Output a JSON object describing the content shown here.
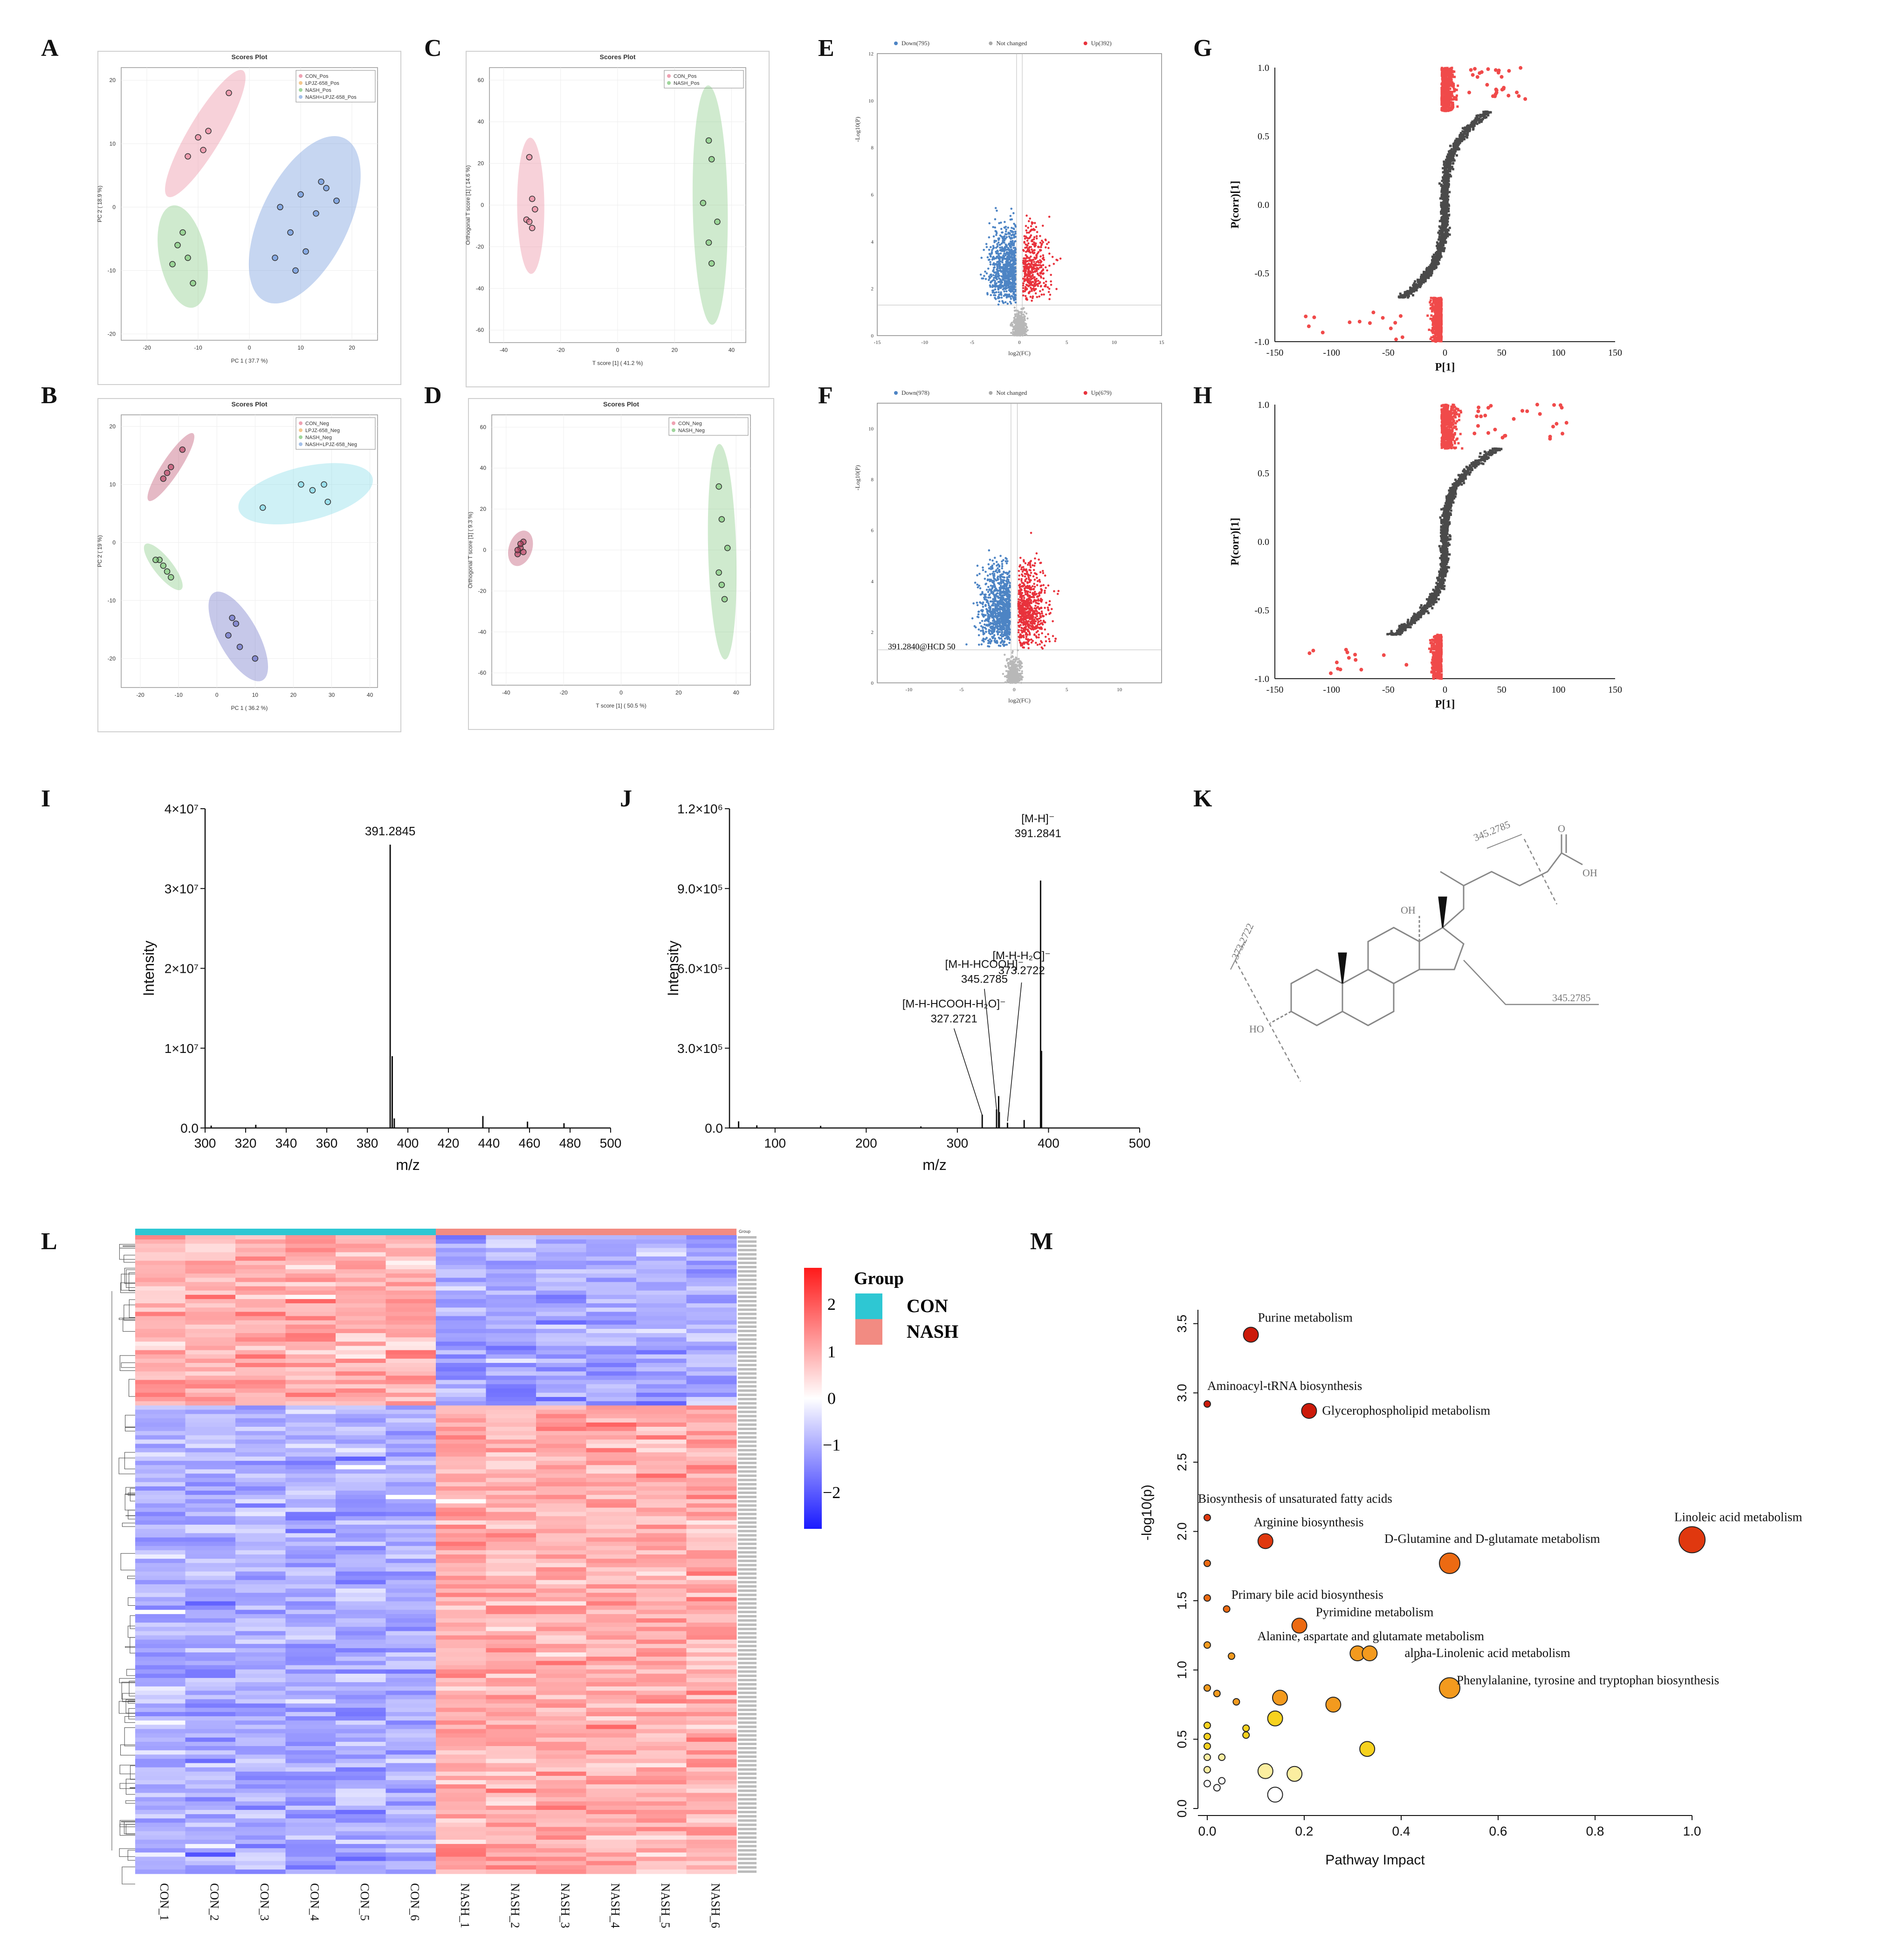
{
  "panels": {
    "A": {
      "letter": "A",
      "title": "Scores Plot",
      "xlabel": "PC 1 ( 37.7 %)",
      "ylabel": "PC 2 ( 18.9 %)",
      "xticks": [
        -20,
        -10,
        0,
        10,
        20
      ],
      "yticks": [
        20,
        10,
        0,
        -10,
        -20
      ],
      "legend": [
        "CON_Pos",
        "LPJZ-658_Pos",
        "NASH_Pos",
        "NASH+LPJZ-658_Pos"
      ],
      "colors": [
        "#e87a93",
        "#f0b060",
        "#76c472",
        "#7fa7e0"
      ],
      "groups": [
        {
          "color": "#e87a93",
          "points": [
            [
              -4,
              18
            ],
            [
              -8,
              12
            ],
            [
              -9,
              9
            ],
            [
              -12,
              8
            ],
            [
              -10,
              11
            ]
          ]
        },
        {
          "color": "#76c472",
          "points": [
            [
              -13,
              -4
            ],
            [
              -14,
              -6
            ],
            [
              -15,
              -9
            ],
            [
              -11,
              -12
            ],
            [
              -12,
              -8
            ]
          ]
        },
        {
          "color": "#5b8ad8",
          "points": [
            [
              6,
              0
            ],
            [
              8,
              -4
            ],
            [
              10,
              2
            ],
            [
              13,
              -1
            ],
            [
              15,
              3
            ],
            [
              17,
              1
            ],
            [
              5,
              -8
            ],
            [
              9,
              -10
            ],
            [
              11,
              -7
            ],
            [
              14,
              4
            ]
          ]
        }
      ]
    },
    "B": {
      "letter": "B",
      "title": "Scores Plot",
      "xlabel": "PC 1 ( 36.2 %)",
      "ylabel": "PC 2 ( 19 %)",
      "xticks": [
        -20,
        -10,
        0,
        10,
        20,
        30,
        40
      ],
      "yticks": [
        20,
        10,
        0,
        -10,
        -20
      ],
      "legend": [
        "CON_Neg",
        "LPJZ-658_Neg",
        "NASH_Neg",
        "NASH+LPJZ-658_Neg"
      ],
      "colors": [
        "#e87a93",
        "#f0b060",
        "#76c472",
        "#7fa7e0"
      ],
      "groups": [
        {
          "color": "#b5375a",
          "points": [
            [
              -9,
              16
            ],
            [
              -13,
              12
            ],
            [
              -14,
              11
            ],
            [
              -12,
              13
            ]
          ]
        },
        {
          "color": "#76c472",
          "points": [
            [
              -15,
              -3
            ],
            [
              -13,
              -5
            ],
            [
              -12,
              -6
            ],
            [
              -14,
              -4
            ],
            [
              -16,
              -3
            ]
          ]
        },
        {
          "color": "#76d6e6",
          "points": [
            [
              22,
              10
            ],
            [
              25,
              9
            ],
            [
              28,
              10
            ],
            [
              29,
              7
            ],
            [
              12,
              6
            ]
          ]
        },
        {
          "color": "#5b62c0",
          "points": [
            [
              3,
              -16
            ],
            [
              5,
              -14
            ],
            [
              6,
              -18
            ],
            [
              10,
              -20
            ],
            [
              4,
              -13
            ]
          ]
        }
      ]
    },
    "C": {
      "letter": "C",
      "title": "Scores Plot",
      "xlabel": "T score [1] ( 41.2 %)",
      "ylabel": "Orthogonal T score [1] ( 14.6 %)",
      "xticks": [
        -40,
        -20,
        0,
        20,
        40
      ],
      "yticks": [
        60,
        40,
        20,
        0,
        -20,
        -40,
        -60
      ],
      "legend": [
        "CON_Pos",
        "NASH_Pos"
      ],
      "colors": [
        "#e87a93",
        "#76c472"
      ],
      "groups": [
        {
          "color": "#e87a93",
          "points": [
            [
              -31,
              23
            ],
            [
              -30,
              3
            ],
            [
              -29,
              -2
            ],
            [
              -32,
              -7
            ],
            [
              -30,
              -11
            ],
            [
              -31,
              -8
            ]
          ]
        },
        {
          "color": "#76c472",
          "points": [
            [
              32,
              31
            ],
            [
              33,
              22
            ],
            [
              30,
              1
            ],
            [
              35,
              -8
            ],
            [
              32,
              -18
            ],
            [
              33,
              -28
            ]
          ]
        }
      ]
    },
    "D": {
      "letter": "D",
      "title": "Scores Plot",
      "xlabel": "T score [1] ( 50.5 %)",
      "ylabel": "Orthogonal T score [1] ( 9.3 %)",
      "xticks": [
        -40,
        -20,
        0,
        20,
        40
      ],
      "yticks": [
        60,
        40,
        20,
        0,
        -20,
        -40,
        -60
      ],
      "legend": [
        "CON_Neg",
        "NASH_Neg"
      ],
      "colors": [
        "#e87a93",
        "#76c472"
      ],
      "groups": [
        {
          "color": "#b5375a",
          "points": [
            [
              -34,
              4
            ],
            [
              -35,
              1
            ],
            [
              -36,
              -2
            ],
            [
              -34,
              -1
            ],
            [
              -35,
              3
            ],
            [
              -36,
              0
            ]
          ]
        },
        {
          "color": "#76c472",
          "points": [
            [
              34,
              31
            ],
            [
              35,
              15
            ],
            [
              37,
              1
            ],
            [
              34,
              -11
            ],
            [
              35,
              -17
            ],
            [
              36,
              -24
            ]
          ]
        }
      ]
    },
    "E": {
      "letter": "E",
      "legend": [
        "Down(795)",
        "Not changed",
        "Up(392)"
      ],
      "xlabel": "log2(FC)",
      "ylabel": "-Log10(P)",
      "xticks": [
        -15,
        -10,
        -5,
        0,
        5,
        10,
        15
      ],
      "yticks": [
        0,
        2,
        4,
        6,
        8,
        10,
        12
      ],
      "down": 795,
      "up": 392
    },
    "F": {
      "letter": "F",
      "legend": [
        "Down(978)",
        "Not changed",
        "Up(679)"
      ],
      "xlabel": "log2(FC)",
      "ylabel": "-Log10(P)",
      "xticks": [
        -10,
        -5,
        0,
        5,
        10
      ],
      "yticks": [
        0,
        2,
        4,
        6,
        8,
        10
      ],
      "annotation": "391.2840@HCD 50",
      "down": 978,
      "up": 679
    },
    "G": {
      "letter": "G",
      "xlabel": "P[1]",
      "ylabel": "P(corr)[1]",
      "xticks": [
        -150,
        -100,
        -50,
        0,
        50,
        100,
        150
      ],
      "yticks": [
        "1.0",
        "0.5",
        "0.0",
        "-0.5",
        "-1.0"
      ]
    },
    "H": {
      "letter": "H",
      "xlabel": "P[1]",
      "ylabel": "P(corr)[1]",
      "xticks": [
        -150,
        -100,
        -50,
        0,
        50,
        100,
        150
      ],
      "yticks": [
        "1.0",
        "0.5",
        "0.0",
        "-0.5",
        "-1.0"
      ]
    },
    "I": {
      "letter": "I",
      "xlabel": "m/z",
      "ylabel": "Intensity",
      "xticks": [
        300,
        320,
        340,
        360,
        380,
        400,
        420,
        440,
        460,
        480,
        500
      ],
      "yticks": [
        "0.0",
        "1×10⁷",
        "2×10⁷",
        "3×10⁷",
        "4×10⁷"
      ],
      "peak_label": "391.2845"
    },
    "J": {
      "letter": "J",
      "xlabel": "m/z",
      "ylabel": "Intensity",
      "xticks": [
        100,
        200,
        300,
        400,
        500
      ],
      "yticks": [
        "0.0",
        "3.0×10⁵",
        "6.0×10⁵",
        "9.0×10⁵",
        "1.2×10⁶"
      ],
      "annotations": [
        {
          "ion": "[M-H]⁻",
          "mz": "391.2841"
        },
        {
          "ion": "[M-H-H₂O]⁻",
          "mz": "373.2722"
        },
        {
          "ion": "[M-H-HCOOH]⁻",
          "mz": "345.2785"
        },
        {
          "ion": "[M-H-HCOOH-H₂O]⁻",
          "mz": "327.2721"
        }
      ]
    },
    "K": {
      "letter": "K",
      "frag_labels": [
        "345.2785",
        "373.2722",
        "345.2785"
      ],
      "atoms": [
        "OH",
        "OH",
        "O",
        "HO"
      ]
    },
    "L": {
      "letter": "L",
      "group_header": "Group",
      "legend_title": "Group",
      "groups": [
        {
          "name": "CON",
          "color": "#2ec7d3"
        },
        {
          "name": "NASH",
          "color": "#f28b82"
        }
      ],
      "scale_ticks": [
        "2",
        "1",
        "0",
        "−1",
        "−2"
      ],
      "columns": [
        "CON_1",
        "CON_2",
        "CON_3",
        "CON_4",
        "CON_5",
        "CON_6",
        "NASH_1",
        "NASH_2",
        "NASH_3",
        "NASH_4",
        "NASH_5",
        "NASH_6"
      ]
    },
    "M": {
      "letter": "M",
      "xlabel": "Pathway Impact",
      "ylabel": "-log10(p)",
      "xticks": [
        "0.0",
        "0.2",
        "0.4",
        "0.6",
        "0.8",
        "1.0"
      ],
      "yticks": [
        "0.0",
        "0.5",
        "1.0",
        "1.5",
        "2.0",
        "2.5",
        "3.0",
        "3.5"
      ]
    }
  },
  "chart_data": [
    {
      "type": "scatter",
      "name": "M pathway bubble plot",
      "xlabel": "Pathway Impact",
      "ylabel": "-log10(p)",
      "xlim": [
        0,
        1
      ],
      "ylim": [
        0,
        3.6
      ],
      "points": [
        {
          "x": 0.09,
          "y": 3.42,
          "label": "Purine metabolism",
          "size": "m"
        },
        {
          "x": 0.0,
          "y": 2.92,
          "label": "Aminoacyl-tRNA biosynthesis",
          "size": "s"
        },
        {
          "x": 0.21,
          "y": 2.87,
          "label": "Glycerophospholipid metabolism",
          "size": "m"
        },
        {
          "x": 0.0,
          "y": 2.1,
          "label": "Biosynthesis of unsaturated fatty acids",
          "size": "s"
        },
        {
          "x": 0.12,
          "y": 1.93,
          "label": "Arginine biosynthesis",
          "size": "m"
        },
        {
          "x": 1.0,
          "y": 1.94,
          "label": "Linoleic acid metabolism",
          "size": "xl"
        },
        {
          "x": 0.5,
          "y": 1.77,
          "label": "D-Glutamine and D-glutamate metabolism",
          "size": "l"
        },
        {
          "x": 0.0,
          "y": 1.77,
          "label": "",
          "size": "s"
        },
        {
          "x": 0.0,
          "y": 1.52,
          "label": "",
          "size": "s"
        },
        {
          "x": 0.04,
          "y": 1.44,
          "label": "Primary bile acid biosynthesis",
          "size": "s"
        },
        {
          "x": 0.19,
          "y": 1.32,
          "label": "Pyrimidine metabolism",
          "size": "m"
        },
        {
          "x": 0.31,
          "y": 1.12,
          "label": "Alanine, aspartate and glutamate metabolism",
          "size": "m"
        },
        {
          "x": 0.335,
          "y": 1.12,
          "label": "alpha-Linolenic acid metabolism",
          "size": "m"
        },
        {
          "x": 0.5,
          "y": 0.87,
          "label": "Phenylalanine, tyrosine and tryptophan biosynthesis",
          "size": "l"
        },
        {
          "x": 0.0,
          "y": 1.18,
          "label": "",
          "size": "s"
        },
        {
          "x": 0.05,
          "y": 1.1,
          "label": "",
          "size": "s"
        },
        {
          "x": 0.0,
          "y": 0.87,
          "label": "",
          "size": "s"
        },
        {
          "x": 0.02,
          "y": 0.83,
          "label": "",
          "size": "s"
        },
        {
          "x": 0.06,
          "y": 0.77,
          "label": "",
          "size": "s"
        },
        {
          "x": 0.15,
          "y": 0.8,
          "label": "",
          "size": "m"
        },
        {
          "x": 0.26,
          "y": 0.75,
          "label": "",
          "size": "m"
        },
        {
          "x": 0.14,
          "y": 0.65,
          "label": "",
          "size": "m"
        },
        {
          "x": 0.08,
          "y": 0.58,
          "label": "",
          "size": "s"
        },
        {
          "x": 0.08,
          "y": 0.53,
          "label": "",
          "size": "s"
        },
        {
          "x": 0.33,
          "y": 0.43,
          "label": "",
          "size": "m"
        },
        {
          "x": 0.0,
          "y": 0.6,
          "label": "",
          "size": "s"
        },
        {
          "x": 0.0,
          "y": 0.52,
          "label": "",
          "size": "s"
        },
        {
          "x": 0.0,
          "y": 0.45,
          "label": "",
          "size": "s"
        },
        {
          "x": 0.0,
          "y": 0.37,
          "label": "",
          "size": "s"
        },
        {
          "x": 0.03,
          "y": 0.37,
          "label": "",
          "size": "s"
        },
        {
          "x": 0.0,
          "y": 0.28,
          "label": "",
          "size": "s"
        },
        {
          "x": 0.12,
          "y": 0.27,
          "label": "",
          "size": "m"
        },
        {
          "x": 0.18,
          "y": 0.25,
          "label": "",
          "size": "m"
        },
        {
          "x": 0.03,
          "y": 0.2,
          "label": "",
          "size": "s"
        },
        {
          "x": 0.0,
          "y": 0.18,
          "label": "",
          "size": "s"
        },
        {
          "x": 0.02,
          "y": 0.15,
          "label": "",
          "size": "s"
        },
        {
          "x": 0.14,
          "y": 0.1,
          "label": "",
          "size": "m"
        }
      ]
    },
    {
      "type": "bar",
      "name": "I MS spectrum",
      "xlabel": "m/z",
      "ylabel": "Intensity",
      "xlim": [
        300,
        500
      ],
      "ylim": [
        0,
        40000000
      ],
      "peaks": [
        [
          391.2845,
          35500000
        ],
        [
          392.3,
          9000000
        ],
        [
          393.3,
          1200000
        ],
        [
          437,
          1500000
        ],
        [
          459,
          800000
        ],
        [
          477,
          600000
        ],
        [
          325,
          400000
        ],
        [
          303,
          300000
        ]
      ]
    },
    {
      "type": "bar",
      "name": "J MS/MS spectrum",
      "xlabel": "m/z",
      "ylabel": "Intensity",
      "xlim": [
        50,
        500
      ],
      "ylim": [
        0,
        1200000
      ],
      "peaks": [
        [
          391.2841,
          930000
        ],
        [
          392.3,
          290000
        ],
        [
          373.2722,
          30000
        ],
        [
          345.2785,
          120000
        ],
        [
          343,
          70000
        ],
        [
          346,
          60000
        ],
        [
          327.2721,
          50000
        ],
        [
          355,
          20000
        ],
        [
          60,
          25000
        ],
        [
          80,
          10000
        ],
        [
          150,
          8000
        ],
        [
          260,
          6000
        ]
      ]
    }
  ]
}
